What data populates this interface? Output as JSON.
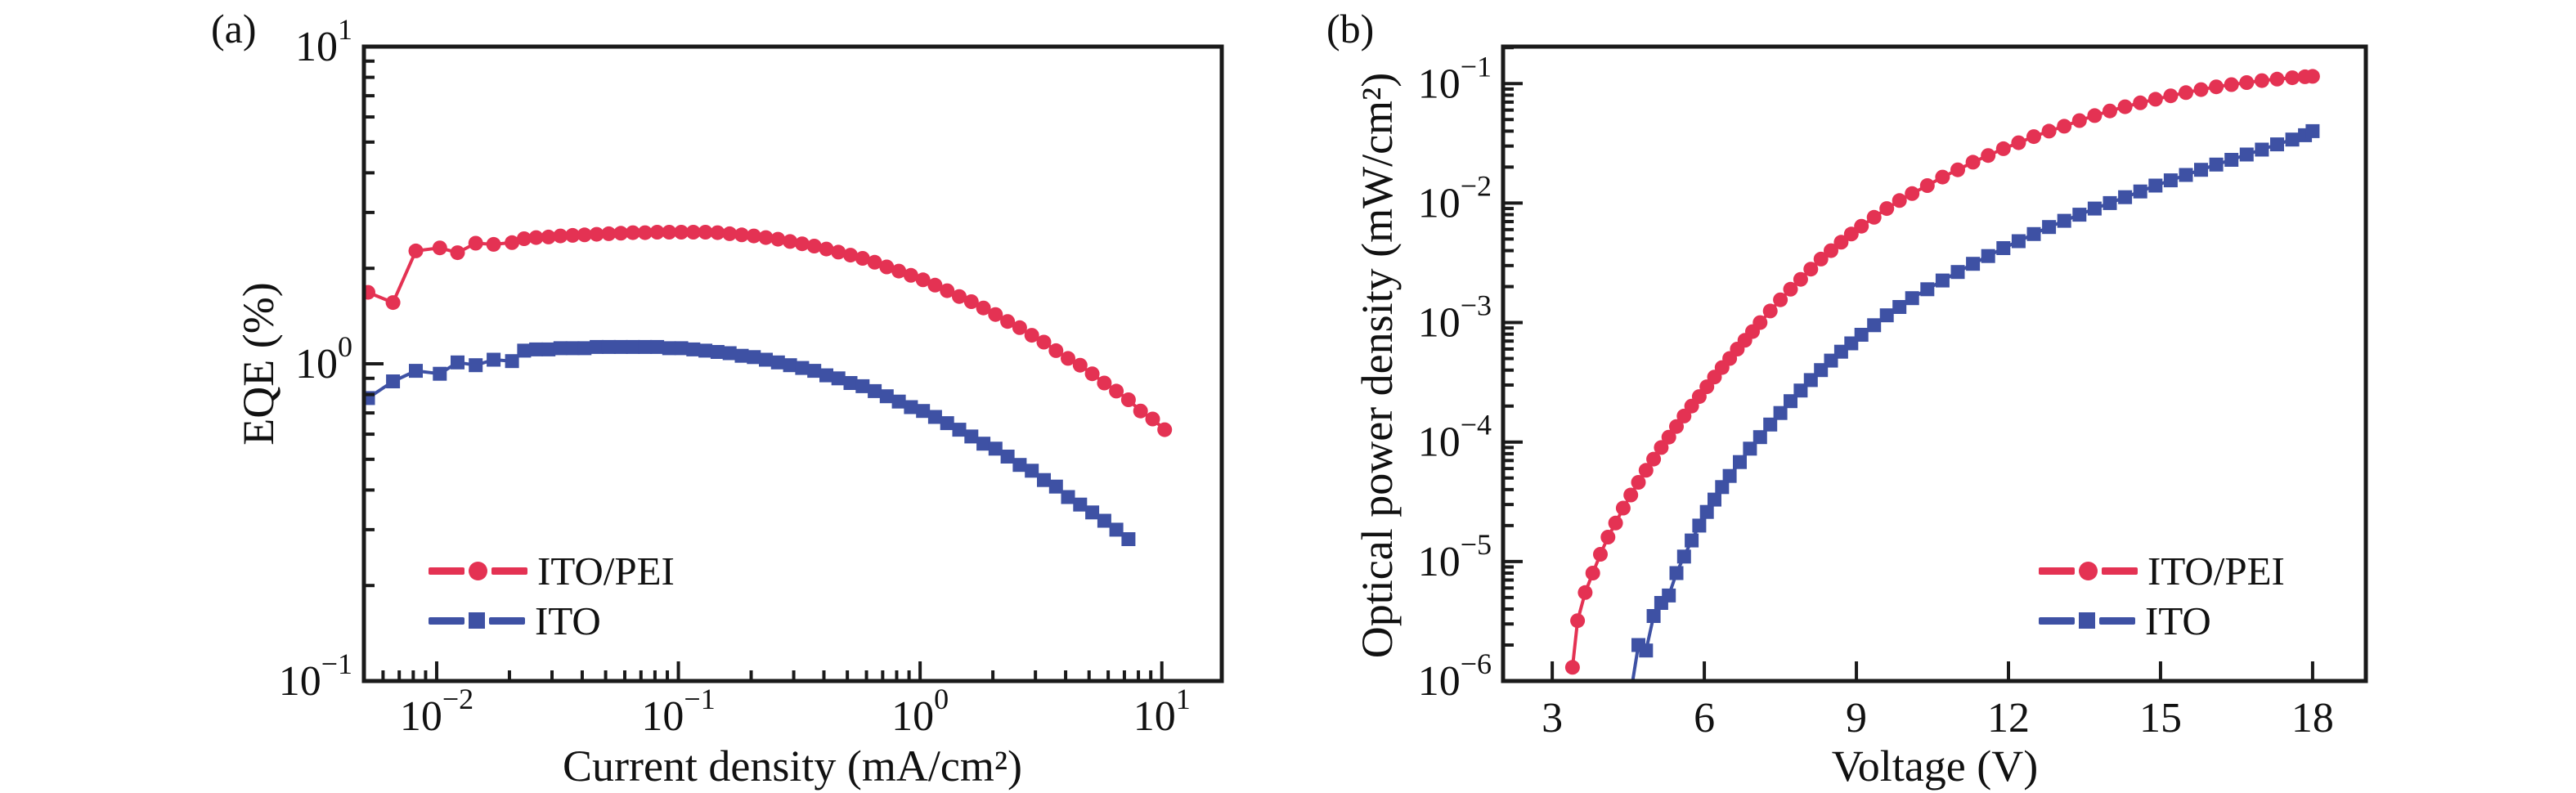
{
  "panels": {
    "a": {
      "label": "(a)",
      "xlabel": "Current density (mA/cm²)",
      "ylabel": "EQE (%)"
    },
    "b": {
      "label": "(b)",
      "xlabel": "Voltage (V)",
      "ylabel": "Optical power density (mW/cm²)"
    }
  },
  "legend": {
    "a": [
      {
        "label": "ITO/PEI",
        "series": "ito_pei"
      },
      {
        "label": "ITO",
        "series": "ito"
      }
    ],
    "b": [
      {
        "label": "ITO/PEI",
        "series": "ito_pei"
      },
      {
        "label": "ITO",
        "series": "ito"
      }
    ]
  },
  "colors": {
    "ito_pei": "#e43253",
    "ito": "#3e51a4",
    "axis": "#1a1a1a",
    "text": "#111111",
    "background": "#ffffff"
  },
  "chart_data": [
    {
      "id": "a",
      "type": "line",
      "title": "(a)",
      "xlabel": "Current density (mA/cm²)",
      "ylabel": "EQE (%)",
      "xscale": "log",
      "yscale": "log",
      "xlim": [
        0.005,
        17.7
      ],
      "ylim": [
        0.1,
        10
      ],
      "xticks_pow10": [
        -2,
        -1,
        0,
        1
      ],
      "yticks_pow10": [
        -1,
        0,
        1
      ],
      "grid": false,
      "legend_position": "lower-left",
      "series": [
        {
          "name": "ITO/PEI",
          "color_key": "ito_pei",
          "marker": "circle",
          "points": [
            [
              0.0052,
              1.68
            ],
            [
              0.0066,
              1.56
            ],
            [
              0.0082,
              2.27
            ],
            [
              0.0103,
              2.32
            ],
            [
              0.0122,
              2.24
            ],
            [
              0.0145,
              2.4
            ],
            [
              0.0172,
              2.38
            ],
            [
              0.0205,
              2.41
            ],
            [
              0.023,
              2.48
            ],
            [
              0.0258,
              2.5
            ],
            [
              0.029,
              2.51
            ],
            [
              0.0325,
              2.53
            ],
            [
              0.0365,
              2.54
            ],
            [
              0.0409,
              2.55
            ],
            [
              0.0459,
              2.56
            ],
            [
              0.0515,
              2.57
            ],
            [
              0.0578,
              2.58
            ],
            [
              0.0648,
              2.59
            ],
            [
              0.0728,
              2.59
            ],
            [
              0.0817,
              2.6
            ],
            [
              0.0916,
              2.6
            ],
            [
              0.1028,
              2.6
            ],
            [
              0.1153,
              2.6
            ],
            [
              0.1294,
              2.6
            ],
            [
              0.1452,
              2.59
            ],
            [
              0.1629,
              2.57
            ],
            [
              0.1828,
              2.55
            ],
            [
              0.2051,
              2.53
            ],
            [
              0.2301,
              2.5
            ],
            [
              0.2582,
              2.47
            ],
            [
              0.2897,
              2.43
            ],
            [
              0.3251,
              2.39
            ],
            [
              0.3648,
              2.35
            ],
            [
              0.4093,
              2.3
            ],
            [
              0.4592,
              2.25
            ],
            [
              0.5152,
              2.2
            ],
            [
              0.5781,
              2.15
            ],
            [
              0.6486,
              2.09
            ],
            [
              0.7278,
              2.02
            ],
            [
              0.8166,
              1.96
            ],
            [
              0.9162,
              1.9
            ],
            [
              1.028,
              1.84
            ],
            [
              1.153,
              1.77
            ],
            [
              1.294,
              1.7
            ],
            [
              1.452,
              1.63
            ],
            [
              1.629,
              1.57
            ],
            [
              1.828,
              1.5
            ],
            [
              2.051,
              1.43
            ],
            [
              2.301,
              1.36
            ],
            [
              2.582,
              1.3
            ],
            [
              2.897,
              1.23
            ],
            [
              3.251,
              1.17
            ],
            [
              3.648,
              1.1
            ],
            [
              4.093,
              1.04
            ],
            [
              4.592,
              0.99
            ],
            [
              5.152,
              0.93
            ],
            [
              5.781,
              0.87
            ],
            [
              6.486,
              0.82
            ],
            [
              7.278,
              0.77
            ],
            [
              8.166,
              0.71
            ],
            [
              9.162,
              0.67
            ],
            [
              10.28,
              0.62
            ]
          ]
        },
        {
          "name": "ITO",
          "color_key": "ito",
          "marker": "square",
          "points": [
            [
              0.0052,
              0.78
            ],
            [
              0.0066,
              0.88
            ],
            [
              0.0082,
              0.95
            ],
            [
              0.0103,
              0.93
            ],
            [
              0.0122,
              1.01
            ],
            [
              0.0145,
              0.99
            ],
            [
              0.0172,
              1.03
            ],
            [
              0.0205,
              1.02
            ],
            [
              0.023,
              1.1
            ],
            [
              0.0258,
              1.11
            ],
            [
              0.029,
              1.11
            ],
            [
              0.0325,
              1.12
            ],
            [
              0.0365,
              1.12
            ],
            [
              0.0409,
              1.12
            ],
            [
              0.0459,
              1.13
            ],
            [
              0.0515,
              1.13
            ],
            [
              0.0578,
              1.13
            ],
            [
              0.0648,
              1.13
            ],
            [
              0.0728,
              1.13
            ],
            [
              0.0817,
              1.13
            ],
            [
              0.0916,
              1.12
            ],
            [
              0.1028,
              1.12
            ],
            [
              0.1153,
              1.11
            ],
            [
              0.1294,
              1.1
            ],
            [
              0.1452,
              1.09
            ],
            [
              0.1629,
              1.08
            ],
            [
              0.1828,
              1.06
            ],
            [
              0.2051,
              1.05
            ],
            [
              0.2301,
              1.03
            ],
            [
              0.2582,
              1.01
            ],
            [
              0.2897,
              0.99
            ],
            [
              0.3251,
              0.97
            ],
            [
              0.3648,
              0.95
            ],
            [
              0.4093,
              0.92
            ],
            [
              0.4592,
              0.9
            ],
            [
              0.5152,
              0.87
            ],
            [
              0.5781,
              0.85
            ],
            [
              0.6486,
              0.82
            ],
            [
              0.7278,
              0.79
            ],
            [
              0.8166,
              0.76
            ],
            [
              0.9162,
              0.73
            ],
            [
              1.028,
              0.71
            ],
            [
              1.153,
              0.68
            ],
            [
              1.294,
              0.65
            ],
            [
              1.452,
              0.62
            ],
            [
              1.629,
              0.59
            ],
            [
              1.828,
              0.56
            ],
            [
              2.051,
              0.54
            ],
            [
              2.301,
              0.51
            ],
            [
              2.582,
              0.48
            ],
            [
              2.897,
              0.46
            ],
            [
              3.251,
              0.43
            ],
            [
              3.648,
              0.41
            ],
            [
              4.093,
              0.38
            ],
            [
              4.592,
              0.36
            ],
            [
              5.152,
              0.34
            ],
            [
              5.781,
              0.32
            ],
            [
              6.486,
              0.3
            ],
            [
              7.278,
              0.28
            ]
          ]
        }
      ]
    },
    {
      "id": "b",
      "type": "line",
      "title": "(b)",
      "xlabel": "Voltage (V)",
      "ylabel": "Optical power density (mW/cm²)",
      "xscale": "linear",
      "yscale": "log",
      "xlim": [
        2.03,
        19.05
      ],
      "ylim": [
        1e-06,
        0.204
      ],
      "xticks": [
        3,
        6,
        9,
        12,
        15,
        18
      ],
      "yticks_pow10": [
        -6,
        -5,
        -4,
        -3,
        -2,
        -1
      ],
      "grid": false,
      "legend_position": "lower-right",
      "series": [
        {
          "name": "ITO/PEI",
          "color_key": "ito_pei",
          "marker": "circle",
          "points": [
            [
              3.4,
              1.3e-06
            ],
            [
              3.5,
              3.2e-06
            ],
            [
              3.65,
              5.5e-06
            ],
            [
              3.8,
              8e-06
            ],
            [
              3.95,
              1.15e-05
            ],
            [
              4.1,
              1.6e-05
            ],
            [
              4.25,
              2.1e-05
            ],
            [
              4.4,
              2.8e-05
            ],
            [
              4.55,
              3.6e-05
            ],
            [
              4.7,
              4.6e-05
            ],
            [
              4.85,
              5.8e-05
            ],
            [
              5.0,
              7.2e-05
            ],
            [
              5.15,
              9e-05
            ],
            [
              5.3,
              0.00011
            ],
            [
              5.45,
              0.000135
            ],
            [
              5.6,
              0.000165
            ],
            [
              5.75,
              0.0002
            ],
            [
              5.9,
              0.00024
            ],
            [
              6.05,
              0.00029
            ],
            [
              6.2,
              0.00035
            ],
            [
              6.35,
              0.00042
            ],
            [
              6.5,
              0.0005
            ],
            [
              6.65,
              0.0006
            ],
            [
              6.8,
              0.00071
            ],
            [
              6.95,
              0.00084
            ],
            [
              7.1,
              0.001
            ],
            [
              7.3,
              0.00125
            ],
            [
              7.5,
              0.00155
            ],
            [
              7.7,
              0.0019
            ],
            [
              7.9,
              0.0023
            ],
            [
              8.1,
              0.0028
            ],
            [
              8.3,
              0.0034
            ],
            [
              8.5,
              0.004
            ],
            [
              8.7,
              0.0047
            ],
            [
              8.9,
              0.0055
            ],
            [
              9.1,
              0.0064
            ],
            [
              9.35,
              0.0076
            ],
            [
              9.6,
              0.009
            ],
            [
              9.85,
              0.0105
            ],
            [
              10.1,
              0.012
            ],
            [
              10.4,
              0.014
            ],
            [
              10.7,
              0.0165
            ],
            [
              11.0,
              0.019
            ],
            [
              11.3,
              0.022
            ],
            [
              11.6,
              0.025
            ],
            [
              11.9,
              0.0285
            ],
            [
              12.2,
              0.032
            ],
            [
              12.5,
              0.036
            ],
            [
              12.8,
              0.04
            ],
            [
              13.1,
              0.044
            ],
            [
              13.4,
              0.049
            ],
            [
              13.7,
              0.054
            ],
            [
              14.0,
              0.059
            ],
            [
              14.3,
              0.064
            ],
            [
              14.6,
              0.069
            ],
            [
              14.9,
              0.074
            ],
            [
              15.2,
              0.079
            ],
            [
              15.5,
              0.084
            ],
            [
              15.8,
              0.089
            ],
            [
              16.1,
              0.094
            ],
            [
              16.4,
              0.098
            ],
            [
              16.7,
              0.102
            ],
            [
              17.0,
              0.106
            ],
            [
              17.3,
              0.109
            ],
            [
              17.6,
              0.112
            ],
            [
              17.85,
              0.114
            ],
            [
              18.0,
              0.115
            ]
          ]
        },
        {
          "name": "ITO",
          "color_key": "ito",
          "marker": "square",
          "points": [
            [
              4.55,
              8e-07
            ],
            [
              4.7,
              2e-06
            ],
            [
              4.85,
              1.8e-06
            ],
            [
              5.0,
              3.5e-06
            ],
            [
              5.15,
              4.5e-06
            ],
            [
              5.3,
              5.2e-06
            ],
            [
              5.45,
              8e-06
            ],
            [
              5.6,
              1.1e-05
            ],
            [
              5.75,
              1.5e-05
            ],
            [
              5.9,
              2e-05
            ],
            [
              6.05,
              2.6e-05
            ],
            [
              6.2,
              3.3e-05
            ],
            [
              6.35,
              4.2e-05
            ],
            [
              6.5,
              5.2e-05
            ],
            [
              6.7,
              6.8e-05
            ],
            [
              6.9,
              8.8e-05
            ],
            [
              7.1,
              0.00011
            ],
            [
              7.3,
              0.00014
            ],
            [
              7.5,
              0.000175
            ],
            [
              7.7,
              0.00022
            ],
            [
              7.9,
              0.00027
            ],
            [
              8.1,
              0.00033
            ],
            [
              8.3,
              0.0004
            ],
            [
              8.5,
              0.00048
            ],
            [
              8.7,
              0.00057
            ],
            [
              8.9,
              0.00067
            ],
            [
              9.1,
              0.00079
            ],
            [
              9.35,
              0.00095
            ],
            [
              9.6,
              0.00115
            ],
            [
              9.85,
              0.00135
            ],
            [
              10.1,
              0.0016
            ],
            [
              10.4,
              0.0019
            ],
            [
              10.7,
              0.00225
            ],
            [
              11.0,
              0.00265
            ],
            [
              11.3,
              0.0031
            ],
            [
              11.6,
              0.0036
            ],
            [
              11.9,
              0.0042
            ],
            [
              12.2,
              0.0048
            ],
            [
              12.5,
              0.0055
            ],
            [
              12.8,
              0.0063
            ],
            [
              13.1,
              0.0071
            ],
            [
              13.4,
              0.008
            ],
            [
              13.7,
              0.009
            ],
            [
              14.0,
              0.01
            ],
            [
              14.3,
              0.0112
            ],
            [
              14.6,
              0.0125
            ],
            [
              14.9,
              0.014
            ],
            [
              15.2,
              0.0155
            ],
            [
              15.5,
              0.0172
            ],
            [
              15.8,
              0.019
            ],
            [
              16.1,
              0.021
            ],
            [
              16.4,
              0.023
            ],
            [
              16.7,
              0.0255
            ],
            [
              17.0,
              0.028
            ],
            [
              17.3,
              0.031
            ],
            [
              17.6,
              0.034
            ],
            [
              17.85,
              0.037
            ],
            [
              18.0,
              0.04
            ]
          ]
        }
      ]
    }
  ]
}
